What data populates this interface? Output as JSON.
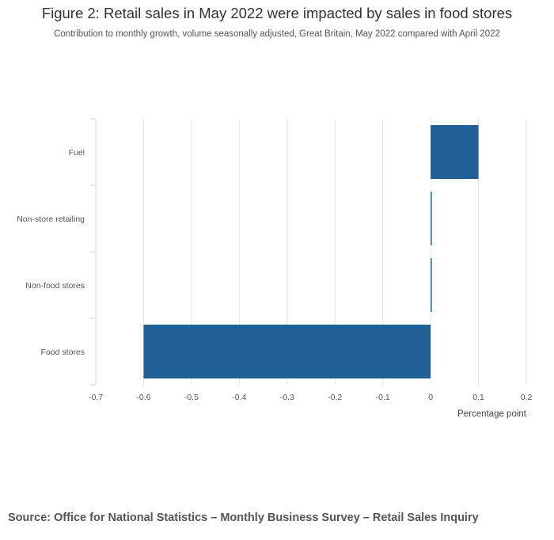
{
  "title": "Figure 2: Retail sales in May 2022 were impacted by sales in food stores",
  "subtitle": "Contribution to monthly growth, volume seasonally adjusted, Great Britain, May 2022 compared with April 2022",
  "source": "Source: Office for National Statistics – Monthly Business Survey – Retail Sales Inquiry",
  "colors": {
    "bar": "#206095",
    "grid": "#e6e6e6",
    "axis": "#ccd6eb"
  },
  "chart_data": {
    "type": "bar",
    "orientation": "horizontal",
    "categories": [
      "Fuel",
      "Non-store retailing",
      "Non-food stores",
      "Food stores"
    ],
    "values": [
      0.1,
      0.0,
      0.0,
      -0.6
    ],
    "xlabel": "Percentage point",
    "ylabel": "",
    "xlim": [
      -0.7,
      0.2
    ],
    "xticks": [
      -0.7,
      -0.6,
      -0.5,
      -0.4,
      -0.3,
      -0.2,
      -0.1,
      0,
      0.1,
      0.2
    ],
    "grid": true,
    "legend": "none"
  }
}
